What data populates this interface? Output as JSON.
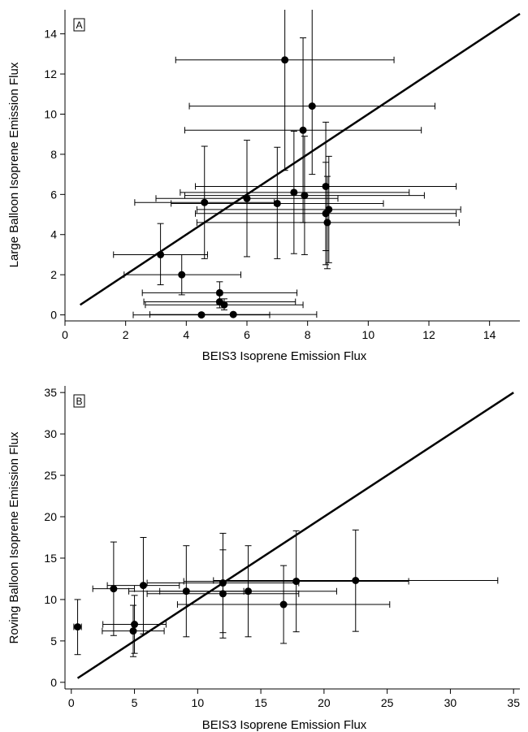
{
  "chart_data": [
    {
      "type": "scatter",
      "panel_label": "A",
      "xlabel": "BEIS3 Isoprene Emission Flux",
      "ylabel": "Large Balloon Isoprene Emission Flux",
      "xlim": [
        0,
        15
      ],
      "ylim": [
        -0.3,
        15.2
      ],
      "xticks": [
        0,
        2,
        4,
        6,
        8,
        10,
        12,
        14
      ],
      "yticks": [
        0,
        2,
        4,
        6,
        8,
        10,
        12,
        14
      ],
      "reference_line": {
        "from": [
          0.5,
          0.5
        ],
        "to": [
          15,
          15
        ]
      },
      "points": [
        {
          "x": 7.25,
          "y": 12.7,
          "xerr": [
            3.65,
            10.85
          ],
          "yerr": [
            7.2,
            15.2
          ]
        },
        {
          "x": 8.15,
          "y": 10.4,
          "xerr": [
            4.1,
            12.2
          ],
          "yerr": [
            7.0,
            15.2
          ]
        },
        {
          "x": 7.85,
          "y": 9.2,
          "xerr": [
            3.95,
            11.75
          ],
          "yerr": [
            4.6,
            13.8
          ]
        },
        {
          "x": 8.6,
          "y": 6.4,
          "xerr": [
            4.3,
            12.9
          ],
          "yerr": [
            3.2,
            9.6
          ]
        },
        {
          "x": 7.55,
          "y": 6.1,
          "xerr": [
            3.8,
            11.35
          ],
          "yerr": [
            3.05,
            9.15
          ]
        },
        {
          "x": 7.9,
          "y": 5.95,
          "xerr": [
            3.95,
            11.85
          ],
          "yerr": [
            3.0,
            8.9
          ]
        },
        {
          "x": 6.0,
          "y": 5.8,
          "xerr": [
            3.0,
            9.0
          ],
          "yerr": [
            2.9,
            8.7
          ]
        },
        {
          "x": 4.6,
          "y": 5.6,
          "xerr": [
            2.3,
            6.9
          ],
          "yerr": [
            2.8,
            8.4
          ]
        },
        {
          "x": 7.0,
          "y": 5.55,
          "xerr": [
            3.5,
            10.5
          ],
          "yerr": [
            2.8,
            8.35
          ]
        },
        {
          "x": 8.7,
          "y": 5.25,
          "xerr": [
            4.35,
            13.05
          ],
          "yerr": [
            2.6,
            7.9
          ]
        },
        {
          "x": 8.6,
          "y": 5.05,
          "xerr": [
            4.3,
            12.9
          ],
          "yerr": [
            2.5,
            7.6
          ]
        },
        {
          "x": 8.65,
          "y": 4.6,
          "xerr": [
            4.35,
            13.0
          ],
          "yerr": [
            2.3,
            6.9
          ]
        },
        {
          "x": 3.15,
          "y": 3.0,
          "xerr": [
            1.6,
            4.7
          ],
          "yerr": [
            1.5,
            4.55
          ]
        },
        {
          "x": 3.85,
          "y": 2.0,
          "xerr": [
            1.95,
            5.8
          ],
          "yerr": [
            1.0,
            3.0
          ]
        },
        {
          "x": 5.1,
          "y": 1.1,
          "xerr": [
            2.55,
            7.65
          ],
          "yerr": [
            0.55,
            1.65
          ]
        },
        {
          "x": 5.1,
          "y": 0.65,
          "xerr": [
            2.6,
            7.6
          ],
          "yerr": [
            0.35,
            1.0
          ]
        },
        {
          "x": 5.25,
          "y": 0.5,
          "xerr": [
            2.65,
            7.85
          ],
          "yerr": [
            0.25,
            0.8
          ]
        },
        {
          "x": 4.5,
          "y": 0.0,
          "xerr": [
            2.25,
            6.75
          ],
          "yerr": [
            0.0,
            0.0
          ]
        },
        {
          "x": 5.55,
          "y": 0.02,
          "xerr": [
            2.8,
            8.3
          ],
          "yerr": [
            0.0,
            0.05
          ]
        }
      ]
    },
    {
      "type": "scatter",
      "panel_label": "B",
      "xlabel": "BEIS3 Isoprene Emission Flux",
      "ylabel": "Roving Balloon Isoprene Emission Flux",
      "xlim": [
        -0.5,
        35.5
      ],
      "ylim": [
        -0.8,
        35.8
      ],
      "xticks": [
        0,
        5,
        10,
        15,
        20,
        25,
        30,
        35
      ],
      "yticks": [
        0,
        5,
        10,
        15,
        20,
        25,
        30,
        35
      ],
      "reference_line": {
        "from": [
          0.5,
          0.5
        ],
        "to": [
          35,
          35
        ]
      },
      "points": [
        {
          "x": 0.5,
          "y": 6.7,
          "xerr": [
            0.2,
            0.8
          ],
          "yerr": [
            3.35,
            10.0
          ]
        },
        {
          "x": 3.35,
          "y": 11.3,
          "xerr": [
            1.7,
            5.0
          ],
          "yerr": [
            5.65,
            16.95
          ]
        },
        {
          "x": 5.7,
          "y": 11.7,
          "xerr": [
            2.85,
            8.55
          ],
          "yerr": [
            5.85,
            17.5
          ]
        },
        {
          "x": 9.1,
          "y": 11.0,
          "xerr": [
            4.55,
            13.65
          ],
          "yerr": [
            5.5,
            16.5
          ]
        },
        {
          "x": 12.0,
          "y": 12.0,
          "xerr": [
            6.0,
            18.0
          ],
          "yerr": [
            6.0,
            18.0
          ]
        },
        {
          "x": 12.0,
          "y": 10.7,
          "xerr": [
            6.0,
            18.0
          ],
          "yerr": [
            5.35,
            16.0
          ]
        },
        {
          "x": 14.0,
          "y": 11.0,
          "xerr": [
            7.0,
            21.0
          ],
          "yerr": [
            5.5,
            16.5
          ]
        },
        {
          "x": 16.8,
          "y": 9.4,
          "xerr": [
            8.4,
            25.2
          ],
          "yerr": [
            4.7,
            14.1
          ]
        },
        {
          "x": 17.8,
          "y": 12.2,
          "xerr": [
            8.9,
            26.7
          ],
          "yerr": [
            6.1,
            18.3
          ]
        },
        {
          "x": 22.5,
          "y": 12.3,
          "xerr": [
            11.25,
            33.75
          ],
          "yerr": [
            6.15,
            18.4
          ]
        },
        {
          "x": 5.0,
          "y": 7.0,
          "xerr": [
            2.5,
            7.5
          ],
          "yerr": [
            3.5,
            10.5
          ]
        },
        {
          "x": 4.9,
          "y": 6.2,
          "xerr": [
            2.45,
            7.35
          ],
          "yerr": [
            3.1,
            9.3
          ]
        }
      ]
    }
  ]
}
